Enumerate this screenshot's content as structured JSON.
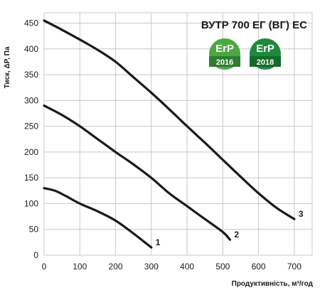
{
  "chart_data": {
    "type": "line",
    "title": "ВУТР 700 ЕГ (ВГ) ЕС",
    "xlabel": "Продуктивність, м³/год",
    "ylabel": "Тиск, ΔР, Па",
    "xlim": [
      0,
      750
    ],
    "ylim": [
      0,
      470
    ],
    "x_ticks": [
      "0",
      "100",
      "200",
      "300",
      "400",
      "500",
      "600",
      "700"
    ],
    "y_ticks": [
      "0",
      "50",
      "100",
      "150",
      "200",
      "250",
      "300",
      "350",
      "400",
      "450"
    ],
    "grid": true,
    "series": [
      {
        "name": "1",
        "points": [
          [
            0,
            130
          ],
          [
            30,
            125
          ],
          [
            60,
            115
          ],
          [
            100,
            100
          ],
          [
            150,
            85
          ],
          [
            200,
            67
          ],
          [
            250,
            42
          ],
          [
            300,
            15
          ]
        ]
      },
      {
        "name": "2",
        "points": [
          [
            0,
            290
          ],
          [
            50,
            272
          ],
          [
            100,
            250
          ],
          [
            150,
            225
          ],
          [
            200,
            200
          ],
          [
            250,
            176
          ],
          [
            300,
            150
          ],
          [
            350,
            120
          ],
          [
            400,
            95
          ],
          [
            450,
            70
          ],
          [
            500,
            45
          ],
          [
            520,
            30
          ]
        ]
      },
      {
        "name": "3",
        "points": [
          [
            0,
            455
          ],
          [
            50,
            437
          ],
          [
            100,
            418
          ],
          [
            150,
            398
          ],
          [
            200,
            375
          ],
          [
            250,
            345
          ],
          [
            300,
            315
          ],
          [
            350,
            283
          ],
          [
            400,
            250
          ],
          [
            450,
            218
          ],
          [
            500,
            185
          ],
          [
            550,
            152
          ],
          [
            600,
            120
          ],
          [
            650,
            92
          ],
          [
            700,
            70
          ]
        ]
      }
    ]
  },
  "badges": [
    {
      "text": "ErP",
      "year": "2016",
      "color": "#4aa83f"
    },
    {
      "text": "ErP",
      "year": "2018",
      "color": "#1f8a3c"
    }
  ]
}
